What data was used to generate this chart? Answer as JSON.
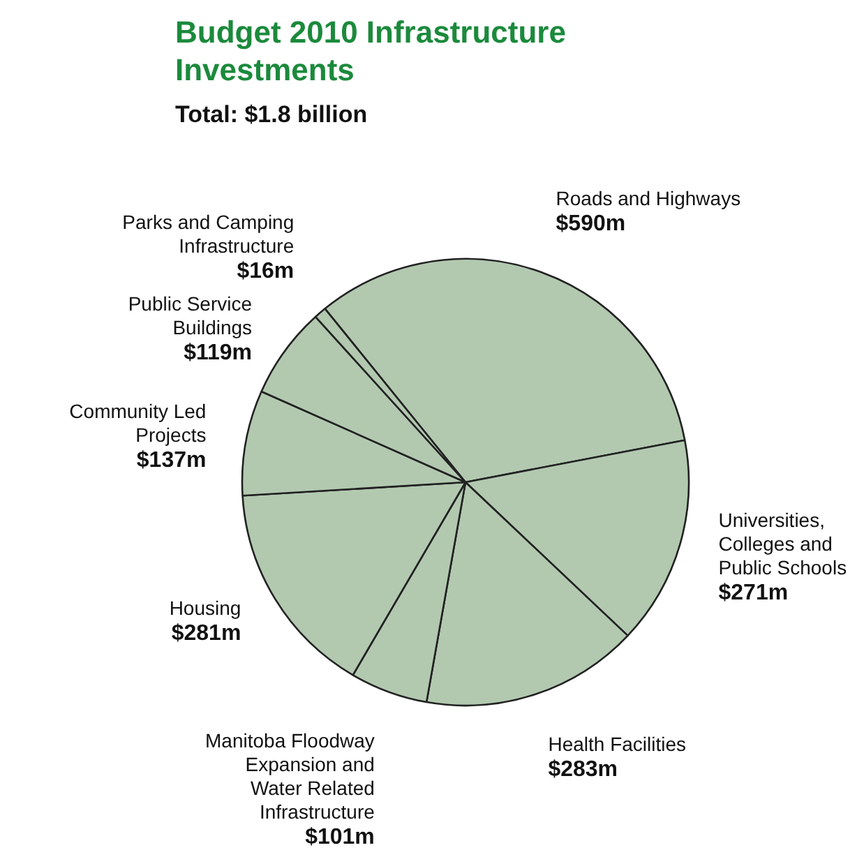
{
  "chart_data": {
    "type": "pie",
    "title": "Budget 2010 Infrastructure Investments",
    "subtitle": "Total: $1.8 billion",
    "categories": [
      "Roads and Highways",
      "Universities, Colleges and Public Schools",
      "Health Facilities",
      "Manitoba Floodway Expansion and Water Related Infrastructure",
      "Housing",
      "Community Led Projects",
      "Public Service Buildings",
      "Parks and Camping Infrastructure"
    ],
    "values": [
      590,
      271,
      283,
      101,
      281,
      137,
      119,
      16
    ],
    "value_labels": [
      "$590m",
      "$271m",
      "$283m",
      "$101m",
      "$281m",
      "$137m",
      "$119m",
      "$16m"
    ],
    "colors": [
      "#b2c9b0",
      "#b2c9b0",
      "#b2c9b0",
      "#b2c9b0",
      "#b2c9b0",
      "#b2c9b0",
      "#b2c9b0",
      "#b2c9b0"
    ]
  }
}
